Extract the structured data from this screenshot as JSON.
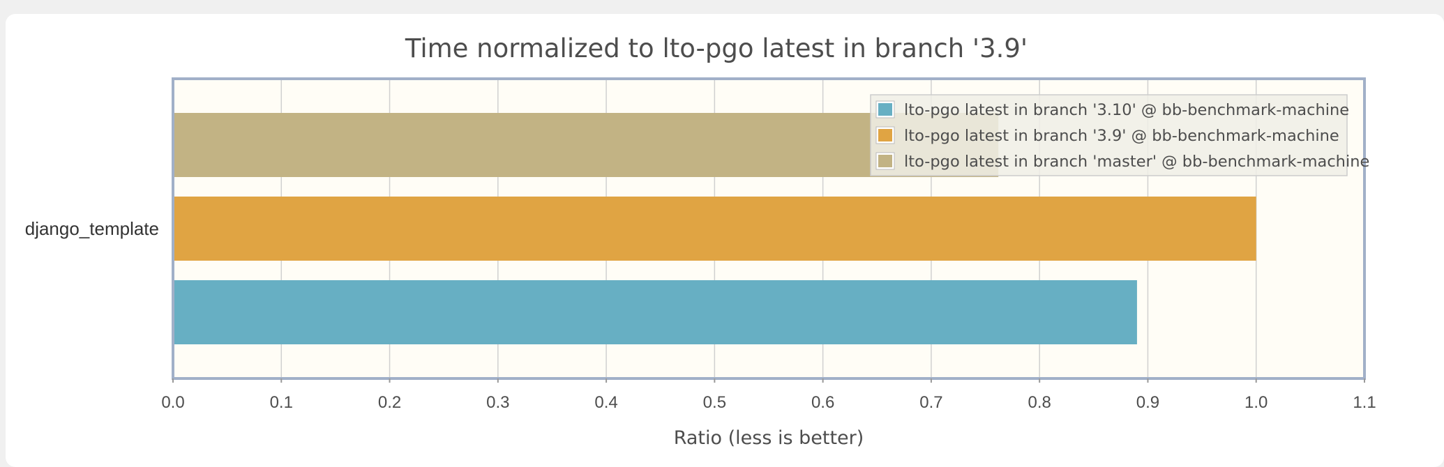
{
  "chart_data": {
    "type": "bar",
    "orientation": "horizontal",
    "title": "Time normalized to lto-pgo latest in branch '3.9'",
    "xlabel": "Ratio  (less is better)",
    "ylabel": "",
    "categories": [
      "django_template"
    ],
    "xlim": [
      0.0,
      1.1
    ],
    "xticks": [
      "0.0",
      "0.1",
      "0.2",
      "0.3",
      "0.4",
      "0.5",
      "0.6",
      "0.7",
      "0.8",
      "0.9",
      "1.0",
      "1.1"
    ],
    "grid": true,
    "legend_position": "top-right",
    "series": [
      {
        "name": "lto-pgo latest in branch '3.10' @ bb-benchmark-machine",
        "color": "#67afc3",
        "values": [
          0.89
        ]
      },
      {
        "name": "lto-pgo latest in branch '3.9' @ bb-benchmark-machine",
        "color": "#e0a443",
        "values": [
          1.0
        ]
      },
      {
        "name": "lto-pgo latest in branch 'master' @ bb-benchmark-machine",
        "color": "#c2b384",
        "values": [
          0.762
        ]
      }
    ],
    "colors": {
      "plot_background": "#fffdf6",
      "plot_border": "#a1b0c8",
      "grid": "#d0d0d0"
    }
  }
}
